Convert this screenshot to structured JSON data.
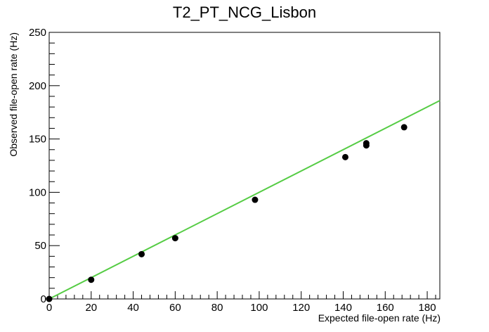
{
  "chart_data": {
    "type": "scatter",
    "title": "T2_PT_NCG_Lisbon",
    "xlabel": "Expected file-open rate (Hz)",
    "ylabel": "Observed file-open rate (Hz)",
    "xlim": [
      0,
      186
    ],
    "ylim": [
      0,
      250
    ],
    "x_ticks": [
      0,
      20,
      40,
      60,
      80,
      100,
      120,
      140,
      160,
      180
    ],
    "y_ticks": [
      0,
      50,
      100,
      150,
      200,
      250
    ],
    "grid": false,
    "legend": "none",
    "series": [
      {
        "type": "scatter",
        "color": "#000000",
        "points": [
          {
            "x": 0,
            "y": 0
          },
          {
            "x": 20,
            "y": 18
          },
          {
            "x": 44,
            "y": 42
          },
          {
            "x": 60,
            "y": 57
          },
          {
            "x": 98,
            "y": 93
          },
          {
            "x": 141,
            "y": 133
          },
          {
            "x": 151,
            "y": 144
          },
          {
            "x": 151,
            "y": 146
          },
          {
            "x": 169,
            "y": 161
          }
        ]
      },
      {
        "type": "line",
        "color": "#55cc44",
        "points": [
          {
            "x": 0,
            "y": 0
          },
          {
            "x": 186,
            "y": 186
          }
        ]
      }
    ]
  }
}
